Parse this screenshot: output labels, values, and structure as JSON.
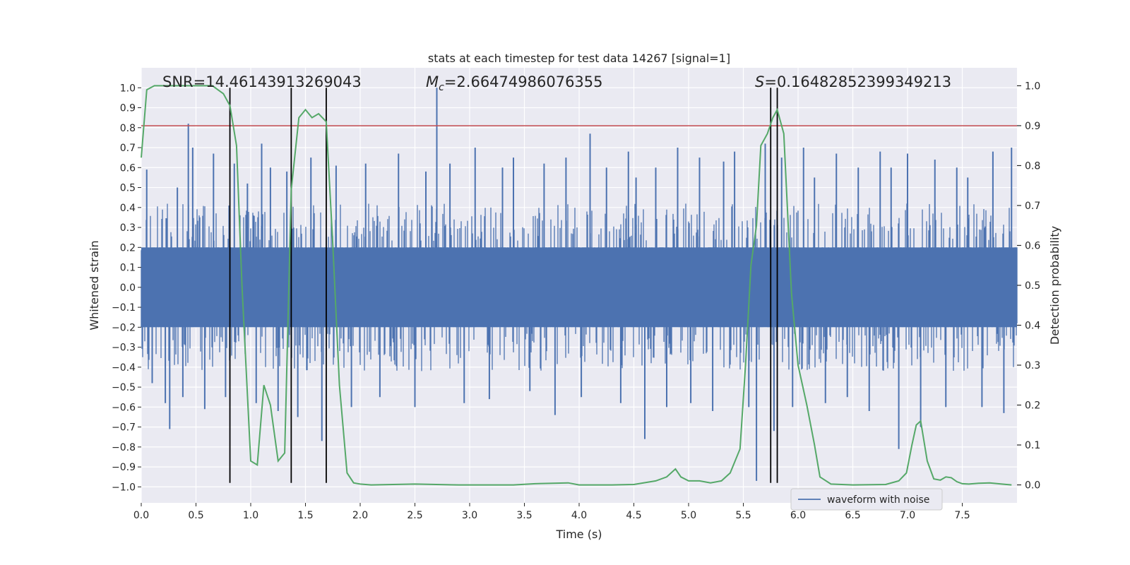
{
  "chart_data": {
    "type": "line",
    "title": "stats at each timestep for test data 14267 [signal=1]",
    "xlabel": "Time (s)",
    "ylabel_left": "Whitened strain",
    "ylabel_right": "Detection probability",
    "xlim": [
      0.0,
      8.0
    ],
    "ylim_left": [
      -1.08,
      1.1
    ],
    "ylim_right": [
      -0.045,
      1.045
    ],
    "x_ticks": [
      0.0,
      0.5,
      1.0,
      1.5,
      2.0,
      2.5,
      3.0,
      3.5,
      4.0,
      4.5,
      5.0,
      5.5,
      6.0,
      6.5,
      7.0,
      7.5
    ],
    "x_tick_labels": [
      "0.0",
      "0.5",
      "1.0",
      "1.5",
      "2.0",
      "2.5",
      "3.0",
      "3.5",
      "4.0",
      "4.5",
      "5.0",
      "5.5",
      "6.0",
      "6.5",
      "7.0",
      "7.5"
    ],
    "y_left_ticks": [
      -1.0,
      -0.9,
      -0.8,
      -0.7,
      -0.6,
      -0.5,
      -0.4,
      -0.3,
      -0.2,
      -0.1,
      0.0,
      0.1,
      0.2,
      0.3,
      0.4,
      0.5,
      0.6,
      0.7,
      0.8,
      0.9,
      1.0
    ],
    "y_left_tick_labels": [
      "−1.0",
      "−0.9",
      "−0.8",
      "−0.7",
      "−0.6",
      "−0.5",
      "−0.4",
      "−0.3",
      "−0.2",
      "−0.1",
      "0.0",
      "0.1",
      "0.2",
      "0.3",
      "0.4",
      "0.5",
      "0.6",
      "0.7",
      "0.8",
      "0.9",
      "1.0"
    ],
    "y_right_ticks": [
      0.0,
      0.1,
      0.2,
      0.3,
      0.4,
      0.5,
      0.6,
      0.7,
      0.8,
      0.9,
      1.0
    ],
    "y_right_tick_labels": [
      "0.0",
      "0.1",
      "0.2",
      "0.3",
      "0.4",
      "0.5",
      "0.6",
      "0.7",
      "0.8",
      "0.9",
      "1.0"
    ],
    "grid": true,
    "annotations": {
      "snr": "SNR=14.46143913269043",
      "mc_symbol": "M",
      "mc_subscript": "c",
      "mc_value": "=2.66474986076355",
      "s_symbol": "S",
      "s_value": "=0.16482852399349213"
    },
    "threshold": {
      "value": 0.9,
      "axis": "right",
      "color": "#c44e52"
    },
    "vertical_lines": [
      0.81,
      1.37,
      1.69,
      5.75,
      5.81
    ],
    "waveform": {
      "name": "waveform with noise",
      "color": "#4c72b0",
      "envelope_main": 0.2,
      "envelope_spike": 0.42,
      "spikes": [
        [
          0.05,
          0.59
        ],
        [
          0.1,
          -0.48
        ],
        [
          0.22,
          -0.58
        ],
        [
          0.26,
          -0.71
        ],
        [
          0.33,
          0.5
        ],
        [
          0.38,
          -0.55
        ],
        [
          0.43,
          0.82
        ],
        [
          0.47,
          0.7
        ],
        [
          0.58,
          -0.61
        ],
        [
          0.66,
          0.67
        ],
        [
          0.77,
          -0.55
        ],
        [
          0.85,
          0.62
        ],
        [
          0.97,
          0.52
        ],
        [
          1.05,
          -0.58
        ],
        [
          1.1,
          0.72
        ],
        [
          1.18,
          0.6
        ],
        [
          1.25,
          -0.62
        ],
        [
          1.33,
          0.58
        ],
        [
          1.43,
          -0.65
        ],
        [
          1.55,
          0.65
        ],
        [
          1.65,
          -0.77
        ],
        [
          1.78,
          0.61
        ],
        [
          1.92,
          -0.6
        ],
        [
          2.05,
          0.62
        ],
        [
          2.18,
          -0.55
        ],
        [
          2.35,
          0.67
        ],
        [
          2.5,
          -0.6
        ],
        [
          2.6,
          0.58
        ],
        [
          2.7,
          1.0
        ],
        [
          2.82,
          0.62
        ],
        [
          2.95,
          -0.58
        ],
        [
          3.05,
          0.7
        ],
        [
          3.18,
          -0.56
        ],
        [
          3.3,
          0.6
        ],
        [
          3.4,
          0.65
        ],
        [
          3.55,
          -0.52
        ],
        [
          3.68,
          0.62
        ],
        [
          3.78,
          -0.64
        ],
        [
          3.88,
          0.65
        ],
        [
          4.02,
          -0.55
        ],
        [
          4.1,
          0.77
        ],
        [
          4.25,
          0.6
        ],
        [
          4.38,
          -0.58
        ],
        [
          4.45,
          0.68
        ],
        [
          4.52,
          0.55
        ],
        [
          4.6,
          -0.76
        ],
        [
          4.7,
          0.6
        ],
        [
          4.8,
          -0.6
        ],
        [
          4.9,
          0.7
        ],
        [
          5.02,
          -0.58
        ],
        [
          5.1,
          0.65
        ],
        [
          5.22,
          -0.62
        ],
        [
          5.32,
          0.63
        ],
        [
          5.42,
          0.68
        ],
        [
          5.55,
          -0.6
        ],
        [
          5.62,
          -0.97
        ],
        [
          5.7,
          0.72
        ],
        [
          5.78,
          -0.72
        ],
        [
          5.85,
          0.65
        ],
        [
          5.95,
          -0.6
        ],
        [
          6.05,
          0.7
        ],
        [
          6.15,
          0.55
        ],
        [
          6.25,
          -0.58
        ],
        [
          6.35,
          0.67
        ],
        [
          6.45,
          -0.55
        ],
        [
          6.55,
          0.6
        ],
        [
          6.65,
          -0.62
        ],
        [
          6.75,
          0.68
        ],
        [
          6.85,
          0.6
        ],
        [
          6.92,
          -0.81
        ],
        [
          7.0,
          0.67
        ],
        [
          7.12,
          -0.7
        ],
        [
          7.25,
          0.64
        ],
        [
          7.35,
          -0.6
        ],
        [
          7.45,
          0.6
        ],
        [
          7.55,
          0.55
        ],
        [
          7.68,
          -0.6
        ],
        [
          7.78,
          0.68
        ],
        [
          7.88,
          -0.63
        ],
        [
          7.95,
          0.7
        ]
      ]
    },
    "probability": {
      "name": "detection probability",
      "color": "#55a868",
      "x": [
        0.0,
        0.05,
        0.12,
        0.2,
        0.3,
        0.4,
        0.5,
        0.6,
        0.65,
        0.7,
        0.75,
        0.81,
        0.87,
        0.92,
        1.0,
        1.06,
        1.12,
        1.18,
        1.25,
        1.31,
        1.37,
        1.44,
        1.5,
        1.56,
        1.62,
        1.69,
        1.75,
        1.81,
        1.88,
        1.94,
        2.0,
        2.1,
        2.3,
        2.5,
        2.9,
        3.0,
        3.4,
        3.6,
        3.9,
        4.0,
        4.3,
        4.5,
        4.7,
        4.8,
        4.88,
        4.93,
        5.0,
        5.1,
        5.2,
        5.3,
        5.38,
        5.47,
        5.52,
        5.57,
        5.62,
        5.66,
        5.72,
        5.77,
        5.81,
        5.87,
        5.94,
        6.0,
        6.08,
        6.15,
        6.2,
        6.3,
        6.5,
        6.8,
        6.92,
        6.99,
        7.04,
        7.08,
        7.12,
        7.18,
        7.24,
        7.3,
        7.35,
        7.4,
        7.45,
        7.5,
        7.56,
        7.65,
        7.75,
        7.86,
        7.95
      ],
      "y": [
        0.82,
        0.99,
        1.0,
        1.0,
        1.0,
        1.0,
        1.0,
        1.0,
        1.0,
        0.99,
        0.98,
        0.95,
        0.85,
        0.5,
        0.06,
        0.05,
        0.25,
        0.2,
        0.06,
        0.08,
        0.74,
        0.92,
        0.94,
        0.92,
        0.93,
        0.91,
        0.6,
        0.25,
        0.03,
        0.005,
        0.002,
        0.0,
        0.001,
        0.002,
        0.0,
        0.0,
        0.0,
        0.003,
        0.005,
        0.0,
        0.0,
        0.001,
        0.01,
        0.02,
        0.04,
        0.02,
        0.01,
        0.01,
        0.005,
        0.01,
        0.03,
        0.09,
        0.3,
        0.55,
        0.65,
        0.85,
        0.88,
        0.92,
        0.94,
        0.88,
        0.48,
        0.3,
        0.2,
        0.1,
        0.02,
        0.002,
        0.0,
        0.001,
        0.01,
        0.03,
        0.1,
        0.15,
        0.16,
        0.06,
        0.015,
        0.012,
        0.02,
        0.018,
        0.008,
        0.003,
        0.002,
        0.004,
        0.005,
        0.002,
        0.0
      ]
    },
    "legend": {
      "label": "waveform with noise",
      "placement": "lower-right"
    }
  }
}
